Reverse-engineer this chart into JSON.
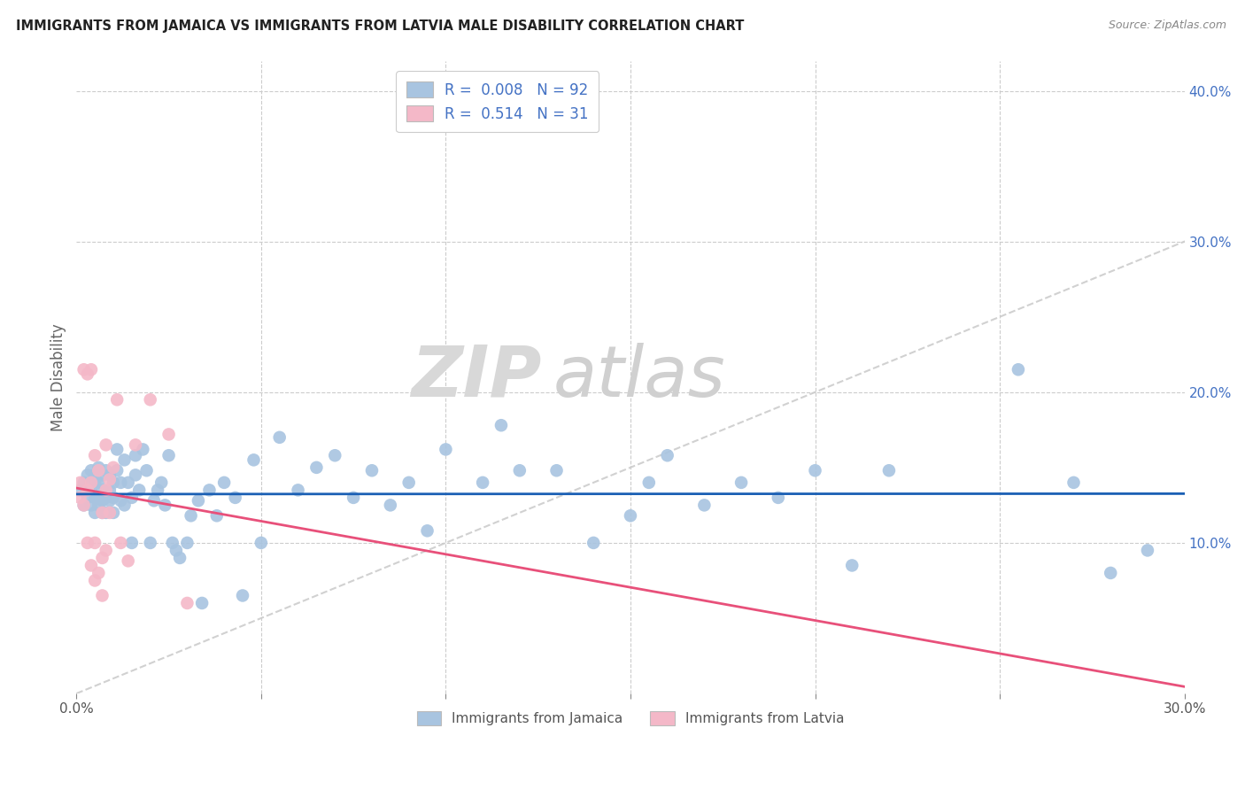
{
  "title": "IMMIGRANTS FROM JAMAICA VS IMMIGRANTS FROM LATVIA MALE DISABILITY CORRELATION CHART",
  "source": "Source: ZipAtlas.com",
  "ylabel": "Male Disability",
  "xlim": [
    0.0,
    0.3
  ],
  "ylim": [
    0.0,
    0.42
  ],
  "jamaica_color": "#a8c4e0",
  "latvia_color": "#f4b8c8",
  "jamaica_line_color": "#1a5fb4",
  "latvia_line_color": "#e8507a",
  "diagonal_color": "#cccccc",
  "background_color": "#ffffff",
  "grid_color": "#cccccc",
  "watermark_zip": "ZIP",
  "watermark_atlas": "atlas",
  "legend_jamaica_r": "0.008",
  "legend_jamaica_n": "92",
  "legend_latvia_r": "0.514",
  "legend_latvia_n": "31",
  "jamaica_x": [
    0.001,
    0.002,
    0.002,
    0.003,
    0.003,
    0.003,
    0.004,
    0.004,
    0.004,
    0.005,
    0.005,
    0.005,
    0.005,
    0.006,
    0.006,
    0.006,
    0.006,
    0.007,
    0.007,
    0.007,
    0.007,
    0.008,
    0.008,
    0.008,
    0.009,
    0.009,
    0.009,
    0.01,
    0.01,
    0.01,
    0.011,
    0.011,
    0.012,
    0.012,
    0.013,
    0.013,
    0.014,
    0.015,
    0.015,
    0.016,
    0.016,
    0.017,
    0.018,
    0.019,
    0.02,
    0.021,
    0.022,
    0.023,
    0.024,
    0.025,
    0.026,
    0.027,
    0.028,
    0.03,
    0.031,
    0.033,
    0.034,
    0.036,
    0.038,
    0.04,
    0.043,
    0.045,
    0.048,
    0.05,
    0.055,
    0.06,
    0.065,
    0.07,
    0.075,
    0.08,
    0.085,
    0.09,
    0.095,
    0.1,
    0.11,
    0.115,
    0.12,
    0.13,
    0.14,
    0.15,
    0.155,
    0.16,
    0.17,
    0.18,
    0.19,
    0.2,
    0.21,
    0.22,
    0.255,
    0.27,
    0.28,
    0.29
  ],
  "jamaica_y": [
    0.135,
    0.14,
    0.125,
    0.13,
    0.135,
    0.145,
    0.125,
    0.135,
    0.148,
    0.12,
    0.13,
    0.14,
    0.145,
    0.125,
    0.13,
    0.14,
    0.15,
    0.12,
    0.128,
    0.135,
    0.145,
    0.12,
    0.13,
    0.148,
    0.128,
    0.135,
    0.145,
    0.12,
    0.13,
    0.14,
    0.148,
    0.162,
    0.128,
    0.14,
    0.125,
    0.155,
    0.14,
    0.1,
    0.13,
    0.145,
    0.158,
    0.135,
    0.162,
    0.148,
    0.1,
    0.128,
    0.135,
    0.14,
    0.125,
    0.158,
    0.1,
    0.095,
    0.09,
    0.1,
    0.118,
    0.128,
    0.06,
    0.135,
    0.118,
    0.14,
    0.13,
    0.065,
    0.155,
    0.1,
    0.17,
    0.135,
    0.15,
    0.158,
    0.13,
    0.148,
    0.125,
    0.14,
    0.108,
    0.162,
    0.14,
    0.178,
    0.148,
    0.148,
    0.1,
    0.118,
    0.14,
    0.158,
    0.125,
    0.14,
    0.13,
    0.148,
    0.085,
    0.148,
    0.215,
    0.14,
    0.08,
    0.095
  ],
  "latvia_x": [
    0.001,
    0.001,
    0.002,
    0.002,
    0.003,
    0.003,
    0.003,
    0.004,
    0.004,
    0.004,
    0.005,
    0.005,
    0.005,
    0.006,
    0.006,
    0.007,
    0.007,
    0.007,
    0.008,
    0.008,
    0.008,
    0.009,
    0.009,
    0.01,
    0.011,
    0.012,
    0.014,
    0.016,
    0.02,
    0.025,
    0.03
  ],
  "latvia_y": [
    0.13,
    0.14,
    0.125,
    0.215,
    0.1,
    0.135,
    0.212,
    0.085,
    0.14,
    0.215,
    0.075,
    0.1,
    0.158,
    0.08,
    0.148,
    0.065,
    0.12,
    0.09,
    0.095,
    0.135,
    0.165,
    0.12,
    0.142,
    0.15,
    0.195,
    0.1,
    0.088,
    0.165,
    0.195,
    0.172,
    0.06
  ]
}
